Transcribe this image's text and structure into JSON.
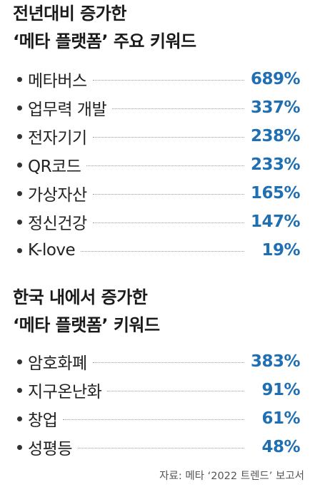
{
  "colors": {
    "value": "#1f6fb2",
    "text": "#222222"
  },
  "chart_data": [
    {
      "type": "table",
      "title_lines": [
        "전년대비 증가한",
        "‘메타 플랫폼’ 주요 키워드"
      ],
      "rows": [
        {
          "label": "메타버스",
          "value": "689%"
        },
        {
          "label": "업무력 개발",
          "value": "337%"
        },
        {
          "label": "전자기기",
          "value": "238%"
        },
        {
          "label": "QR코드",
          "value": "233%"
        },
        {
          "label": "가상자산",
          "value": "165%"
        },
        {
          "label": "정신건강",
          "value": "147%"
        },
        {
          "label": "K-love",
          "value": "19%"
        }
      ]
    },
    {
      "type": "table",
      "title_lines": [
        "한국 내에서 증가한",
        "‘메타 플랫폼’ 키워드"
      ],
      "rows": [
        {
          "label": "암호화폐",
          "value": "383%"
        },
        {
          "label": "지구온난화",
          "value": "91%"
        },
        {
          "label": "창업",
          "value": "61%"
        },
        {
          "label": "성평등",
          "value": "48%"
        }
      ]
    }
  ],
  "source": "자료: 메타 ‘2022 트렌드’ 보고서"
}
